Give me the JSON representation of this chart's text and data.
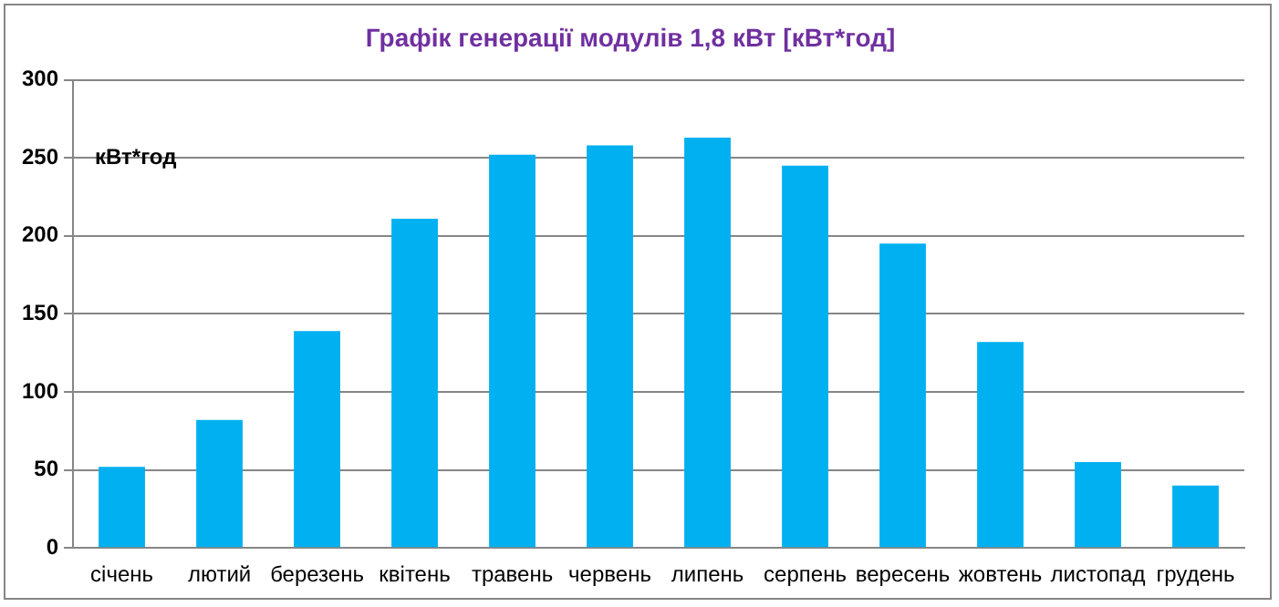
{
  "chart_data": {
    "type": "bar",
    "title": "Графік генерації модулів 1,8 кВт [кВт*год]",
    "ylabel": "кВт*год",
    "categories": [
      "січень",
      "лютий",
      "березень",
      "квітень",
      "травень",
      "червень",
      "липень",
      "серпень",
      "вересень",
      "жовтень",
      "листопад",
      "грудень"
    ],
    "series": [
      {
        "color": "#00b0f0",
        "values": [
          52,
          82,
          139,
          211,
          252,
          258,
          263,
          245,
          195,
          132,
          55,
          40
        ]
      }
    ],
    "ylim": [
      0,
      300
    ],
    "yticks": [
      0,
      50,
      100,
      150,
      200,
      250,
      300
    ],
    "grid": "y",
    "legend": false
  }
}
